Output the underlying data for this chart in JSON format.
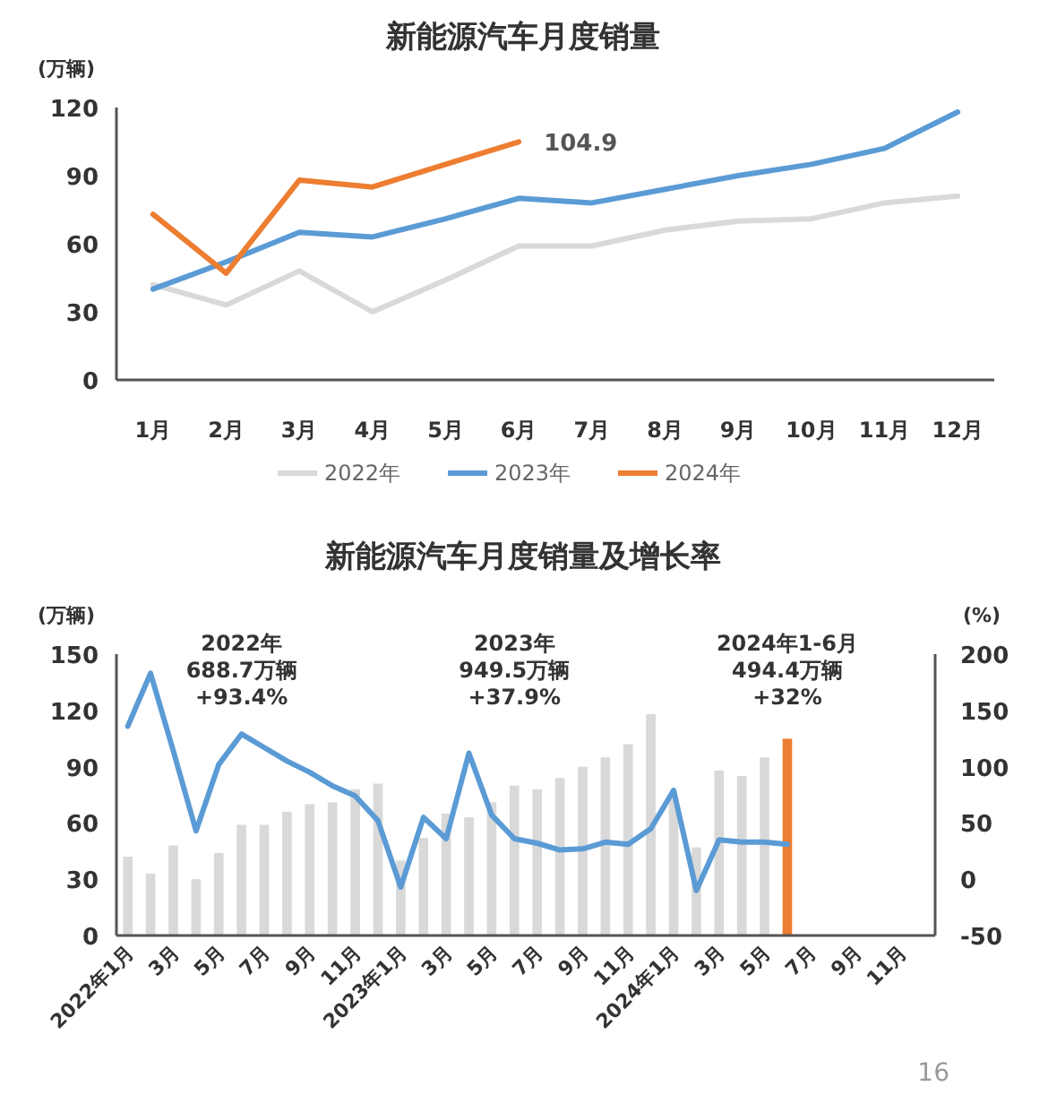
{
  "chart_data": [
    {
      "type": "line",
      "title": "新能源汽车月度销量",
      "ylabel": "(万辆)",
      "categories": [
        "1月",
        "2月",
        "3月",
        "4月",
        "5月",
        "6月",
        "7月",
        "8月",
        "9月",
        "10月",
        "11月",
        "12月"
      ],
      "series": [
        {
          "name": "2022年",
          "color": "#d9d9d9",
          "values": [
            42,
            33,
            48,
            30,
            44,
            59,
            59,
            66,
            70,
            71,
            78,
            81
          ]
        },
        {
          "name": "2023年",
          "color": "#5b9bd5",
          "values": [
            40,
            52,
            65,
            63,
            71,
            80,
            78,
            84,
            90,
            95,
            102,
            118
          ]
        },
        {
          "name": "2024年",
          "color": "#ed7d31",
          "values": [
            73,
            47,
            88,
            85,
            95,
            104.9,
            null,
            null,
            null,
            null,
            null,
            null
          ]
        }
      ],
      "ylim": [
        0,
        120
      ],
      "yticks": [
        0,
        30,
        60,
        90,
        120
      ],
      "legend": "bottom",
      "grid": false,
      "annotations": [
        {
          "text": "104.9",
          "x": "6月",
          "y": 104.9
        }
      ]
    },
    {
      "type": "bar",
      "title": "新能源汽车月度销量及增长率",
      "ylabel": "(万辆)",
      "y2label": "(%)",
      "categories": [
        "2022年1月",
        null,
        "3月",
        null,
        "5月",
        null,
        "7月",
        null,
        "9月",
        null,
        "11月",
        null,
        "2023年1月",
        null,
        "3月",
        null,
        "5月",
        null,
        "7月",
        null,
        "9月",
        null,
        "11月",
        null,
        "2024年1月",
        null,
        "3月",
        null,
        "5月",
        null,
        "7月",
        null,
        "9月",
        null,
        "11月",
        null
      ],
      "series": [
        {
          "colors": [
            "#d9d9d9",
            "#d9d9d9",
            "#d9d9d9",
            "#d9d9d9",
            "#d9d9d9",
            "#d9d9d9",
            "#d9d9d9",
            "#d9d9d9",
            "#d9d9d9",
            "#d9d9d9",
            "#d9d9d9",
            "#d9d9d9",
            "#d9d9d9",
            "#d9d9d9",
            "#d9d9d9",
            "#d9d9d9",
            "#d9d9d9",
            "#d9d9d9",
            "#d9d9d9",
            "#d9d9d9",
            "#d9d9d9",
            "#d9d9d9",
            "#d9d9d9",
            "#d9d9d9",
            "#d9d9d9",
            "#d9d9d9",
            "#d9d9d9",
            "#d9d9d9",
            "#d9d9d9",
            "#ed7d31",
            null,
            null,
            null,
            null,
            null,
            null
          ],
          "values": [
            42,
            33,
            48,
            30,
            44,
            59,
            59,
            66,
            70,
            71,
            78,
            81,
            40,
            52,
            65,
            63,
            71,
            80,
            78,
            84,
            90,
            95,
            102,
            118,
            73,
            47,
            88,
            85,
            95,
            104.9,
            null,
            null,
            null,
            null,
            null,
            null
          ]
        },
        {
          "type": "line",
          "axis": "y2",
          "color": "#5b9bd5",
          "values": [
            136,
            183,
            114,
            43,
            102,
            129,
            117,
            105,
            95,
            83,
            74,
            52,
            -7,
            55,
            36,
            112,
            57,
            36,
            32,
            26,
            27,
            33,
            31,
            45,
            79,
            -10,
            35,
            33,
            33,
            31,
            null,
            null,
            null,
            null,
            null,
            null
          ]
        }
      ],
      "ylim": [
        0,
        150
      ],
      "yticks": [
        0,
        30,
        60,
        90,
        120,
        150
      ],
      "y2lim": [
        -50,
        200
      ],
      "y2ticks": [
        -50,
        0,
        50,
        100,
        150,
        200
      ],
      "grid": false,
      "annotations": [
        "2022年\n688.7万辆\n+93.4%",
        "2023年\n949.5万辆\n+37.9%",
        "2024年1-6月\n494.4万辆\n+32%",
        "16"
      ]
    }
  ]
}
